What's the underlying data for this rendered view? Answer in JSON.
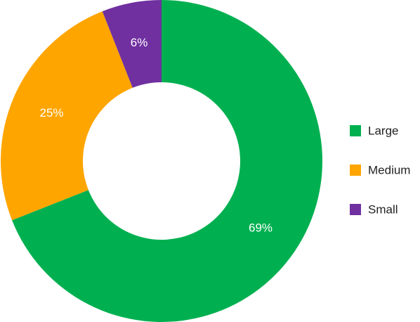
{
  "chart_data": {
    "type": "donut",
    "categories": [
      "Large",
      "Medium",
      "Small"
    ],
    "values": [
      69,
      25,
      6
    ],
    "value_labels": [
      "69%",
      "25%",
      "6%"
    ],
    "colors": [
      "#00b050",
      "#ffa500",
      "#7030a0"
    ],
    "legend": "right"
  }
}
